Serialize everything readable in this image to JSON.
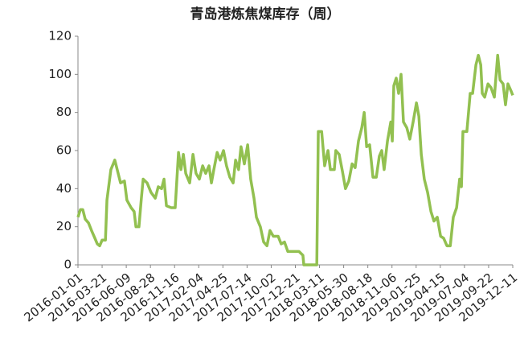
{
  "chart_data": {
    "type": "line",
    "title": "青岛港炼焦煤库存（周）",
    "x": [
      "2016-01-01",
      "2016-01-09",
      "2016-01-17",
      "2016-01-25",
      "2016-02-05",
      "2016-02-15",
      "2016-02-26",
      "2016-03-05",
      "2016-03-13",
      "2016-03-21",
      "2016-04-01",
      "2016-04-06",
      "2016-04-19",
      "2016-05-02",
      "2016-05-10",
      "2016-05-21",
      "2016-06-03",
      "2016-06-11",
      "2016-06-25",
      "2016-07-05",
      "2016-07-11",
      "2016-07-21",
      "2016-07-29",
      "2016-08-04",
      "2016-08-17",
      "2016-08-30",
      "2016-09-13",
      "2016-09-23",
      "2016-10-04",
      "2016-10-12",
      "2016-10-20",
      "2016-11-05",
      "2016-11-18",
      "2016-11-29",
      "2016-12-07",
      "2016-12-15",
      "2016-12-23",
      "2017-01-05",
      "2017-01-16",
      "2017-01-26",
      "2017-02-06",
      "2017-02-17",
      "2017-02-27",
      "2017-03-10",
      "2017-03-18",
      "2017-03-26",
      "2017-04-06",
      "2017-04-16",
      "2017-04-27",
      "2017-05-07",
      "2017-05-18",
      "2017-05-29",
      "2017-06-06",
      "2017-06-16",
      "2017-06-24",
      "2017-07-05",
      "2017-07-16",
      "2017-07-26",
      "2017-08-06",
      "2017-08-14",
      "2017-08-27",
      "2017-09-07",
      "2017-09-18",
      "2017-09-28",
      "2017-10-09",
      "2017-10-25",
      "2017-11-04",
      "2017-11-15",
      "2017-11-26",
      "2017-12-17",
      "2018-01-02",
      "2018-01-15",
      "2018-01-18",
      "2018-03-02",
      "2018-03-07",
      "2018-03-18",
      "2018-03-28",
      "2018-04-08",
      "2018-04-16",
      "2018-04-29",
      "2018-05-04",
      "2018-05-15",
      "2018-05-26",
      "2018-06-05",
      "2018-06-16",
      "2018-06-27",
      "2018-07-07",
      "2018-07-18",
      "2018-07-29",
      "2018-08-06",
      "2018-08-14",
      "2018-08-24",
      "2018-09-04",
      "2018-09-15",
      "2018-09-25",
      "2018-10-03",
      "2018-10-11",
      "2018-10-22",
      "2018-11-02",
      "2018-11-07",
      "2018-11-12",
      "2018-11-20",
      "2018-11-28",
      "2018-12-06",
      "2018-12-14",
      "2018-12-25",
      "2019-01-04",
      "2019-01-15",
      "2019-01-26",
      "2019-02-03",
      "2019-02-11",
      "2019-02-21",
      "2019-03-04",
      "2019-03-15",
      "2019-03-25",
      "2019-04-05",
      "2019-04-16",
      "2019-04-26",
      "2019-05-07",
      "2019-05-18",
      "2019-05-28",
      "2019-06-08",
      "2019-06-18",
      "2019-06-24",
      "2019-06-29",
      "2019-07-12",
      "2019-07-23",
      "2019-07-31",
      "2019-08-11",
      "2019-08-19",
      "2019-08-27",
      "2019-09-01",
      "2019-09-09",
      "2019-09-20",
      "2019-09-30",
      "2019-10-11",
      "2019-10-22",
      "2019-10-30",
      "2019-11-09",
      "2019-11-17",
      "2019-11-25",
      "2019-12-06",
      "2019-12-11"
    ],
    "series": [
      {
        "color": "#92c050",
        "values": [
          25,
          29,
          29,
          24,
          22,
          18,
          14,
          11,
          10,
          13,
          13,
          34,
          50,
          55,
          50,
          43,
          44,
          34,
          30,
          28,
          20,
          20,
          35,
          45,
          43,
          38,
          35,
          41,
          40,
          45,
          31,
          30,
          30,
          59,
          50,
          58,
          48,
          43,
          58,
          48,
          45,
          52,
          48,
          52,
          43,
          50,
          59,
          55,
          60,
          52,
          46,
          43,
          55,
          50,
          62,
          53,
          63,
          45,
          35,
          25,
          20,
          12,
          10,
          18,
          15,
          15,
          11,
          12,
          7,
          7,
          7,
          5,
          0,
          0,
          70,
          70,
          52,
          60,
          50,
          50,
          60,
          58,
          49,
          40,
          44,
          53,
          51,
          65,
          72,
          80,
          62,
          63,
          46,
          46,
          57,
          60,
          50,
          65,
          75,
          65,
          94,
          98,
          90,
          100,
          75,
          72,
          66,
          75,
          85,
          78,
          58,
          45,
          38,
          28,
          23,
          25,
          15,
          14,
          10,
          10,
          25,
          30,
          45,
          41,
          70,
          70,
          90,
          90,
          105,
          110,
          105,
          90,
          88,
          95,
          93,
          88,
          110,
          97,
          95,
          84,
          95,
          91,
          89
        ]
      }
    ],
    "xlim": [
      "2016-01-01",
      "2019-12-11"
    ],
    "xticks": [
      "2016-01-01",
      "2016-03-21",
      "2016-06-09",
      "2016-08-28",
      "2016-11-16",
      "2017-02-04",
      "2017-04-25",
      "2017-07-14",
      "2017-10-02",
      "2017-12-21",
      "2018-03-11",
      "2018-05-30",
      "2018-08-18",
      "2018-11-06",
      "2019-01-25",
      "2019-04-15",
      "2019-07-04",
      "2019-09-22",
      "2019-12-11"
    ],
    "ylim": [
      0,
      120
    ],
    "yticks": [
      0,
      20,
      40,
      60,
      80,
      100,
      120
    ],
    "grid": false
  }
}
